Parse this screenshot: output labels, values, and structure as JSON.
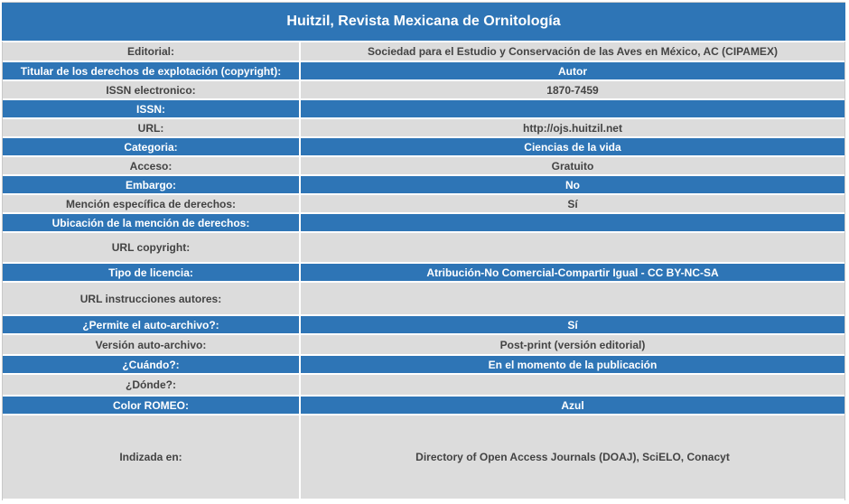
{
  "title": "Huitzil, Revista Mexicana de Ornitología",
  "rows": [
    {
      "label": "Editorial:",
      "value": "Sociedad para el Estudio y Conservación de las Aves en México, AC (CIPAMEX)"
    },
    {
      "label": "Titular de los derechos de explotación (copyright):",
      "value": "Autor"
    },
    {
      "label": "ISSN electronico:",
      "value": "1870-7459"
    },
    {
      "label": "ISSN:",
      "value": ""
    },
    {
      "label": "URL:",
      "value": "http://ojs.huitzil.net"
    },
    {
      "label": "Categoria:",
      "value": "Ciencias de la vida"
    },
    {
      "label": "Acceso:",
      "value": "Gratuito"
    },
    {
      "label": "Embargo:",
      "value": "No"
    },
    {
      "label": "Mención específica de derechos:",
      "value": "Sí"
    },
    {
      "label": "Ubicación de la mención de derechos:",
      "value": ""
    },
    {
      "label": "URL copyright:",
      "value": ""
    },
    {
      "label": "Tipo de licencia:",
      "value": "Atribución-No Comercial-Compartir Igual - CC BY-NC-SA"
    },
    {
      "label": "URL instrucciones autores:",
      "value": ""
    },
    {
      "label": "¿Permite el auto-archivo?:",
      "value": "Sí"
    },
    {
      "label": "Versión auto-archivo:",
      "value": "Post-print (versión editorial)"
    },
    {
      "label": "¿Cuándo?:",
      "value": "En el momento de la publicación"
    },
    {
      "label": "¿Dónde?:",
      "value": ""
    },
    {
      "label": "Color ROMEO:",
      "value": "Azul"
    },
    {
      "label": "Indizada en:",
      "value": "Directory of Open Access Journals (DOAJ), SciELO, Conacyt"
    }
  ],
  "colors": {
    "header_blue": "#2e75b6",
    "row_light": "#dcdcdc",
    "text_dark": "#434343"
  }
}
